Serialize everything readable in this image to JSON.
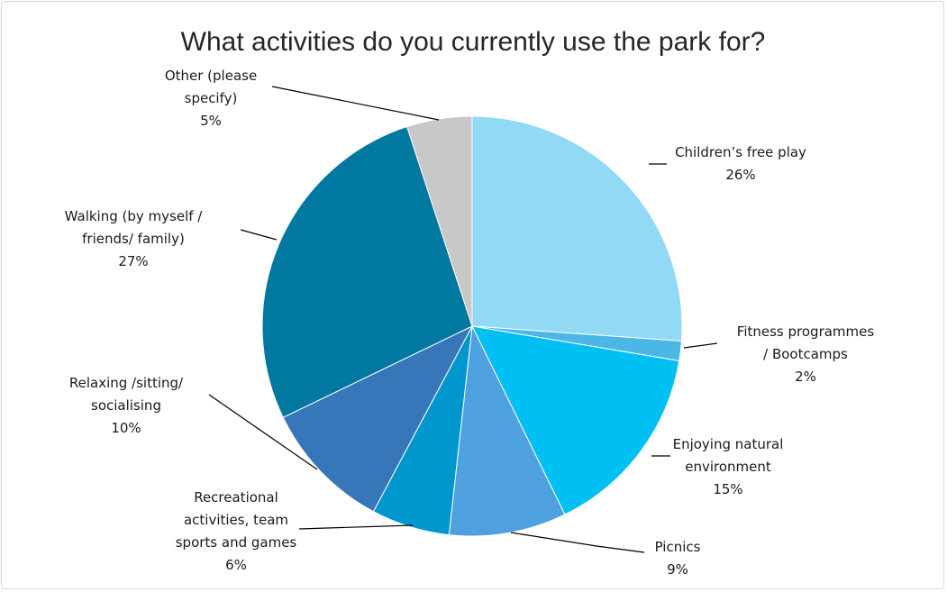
{
  "chart_data": {
    "type": "pie",
    "title": "What activities do you currently use the park for?",
    "start_angle_deg": 0,
    "direction": "clockwise",
    "slices": [
      {
        "label": "Children’s free play",
        "label_lines": [
          "Children’s free play"
        ],
        "value": 26,
        "value_label": "26%",
        "color": "#92D9F6"
      },
      {
        "label": "Fitness programmes / Bootcamps",
        "label_lines": [
          "Fitness programmes",
          "/ Bootcamps"
        ],
        "value": 1.5,
        "value_label": "2%",
        "color": "#4AB7E6"
      },
      {
        "label": "Enjoying natural environment",
        "label_lines": [
          "Enjoying natural",
          "environment"
        ],
        "value": 15,
        "value_label": "15%",
        "color": "#00BFF3"
      },
      {
        "label": "Picnics",
        "label_lines": [
          "Picnics"
        ],
        "value": 9,
        "value_label": "9%",
        "color": "#4FA0DF"
      },
      {
        "label": "Recreational activities, team sports and games",
        "label_lines": [
          "Recreational",
          "activities, team",
          "sports and games"
        ],
        "value": 6,
        "value_label": "6%",
        "color": "#0096CE"
      },
      {
        "label": "Relaxing /sitting/ socialising",
        "label_lines": [
          "Relaxing /sitting/",
          "socialising"
        ],
        "value": 10,
        "value_label": "10%",
        "color": "#3876BA"
      },
      {
        "label": "Walking (by myself / friends/ family)",
        "label_lines": [
          "Walking (by myself /",
          "friends/ family)"
        ],
        "value": 27,
        "value_label": "27%",
        "color": "#00789F"
      },
      {
        "label": "Other (please specify)",
        "label_lines": [
          "Other (please",
          "specify)"
        ],
        "value": 5,
        "value_label": "5%",
        "color": "#C8C8C8"
      }
    ],
    "legend": "none",
    "data_labels": "outside-with-leader-lines"
  }
}
